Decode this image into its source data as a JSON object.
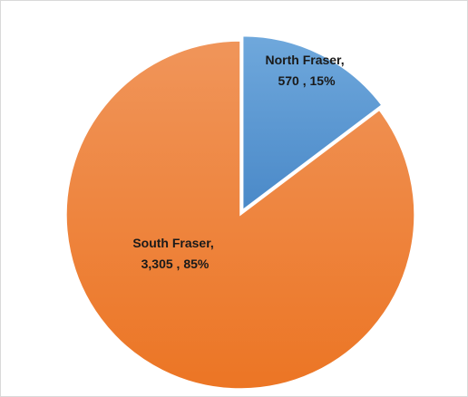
{
  "chart_data": {
    "type": "pie",
    "title": "",
    "exploded_slice": "North Fraser",
    "slices": [
      {
        "name": "North Fraser",
        "value_label": "570",
        "value": 570,
        "percent_label": "15%",
        "color": "#5b9bd5"
      },
      {
        "name": "South Fraser",
        "value_label": "3,305",
        "value": 3305,
        "percent_label": "85%",
        "color": "#ed7d31"
      }
    ],
    "data_labels": [
      {
        "line1": "North Fraser,",
        "line2": "570 , 15%"
      },
      {
        "line1": "South Fraser,",
        "line2": "3,305 , 85%"
      }
    ]
  }
}
